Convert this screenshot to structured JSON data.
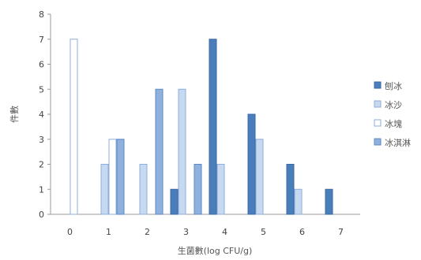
{
  "chart_data": {
    "type": "bar",
    "categories": [
      "0",
      "1",
      "2",
      "3",
      "4",
      "5",
      "6",
      "7"
    ],
    "series": [
      {
        "name": "刨冰",
        "values": [
          0,
          0,
          0,
          1,
          7,
          4,
          2,
          1
        ],
        "fill": "#4a7ebb",
        "stroke": "#3a6aa5"
      },
      {
        "name": "冰沙",
        "values": [
          0,
          2,
          2,
          5,
          2,
          3,
          1,
          0
        ],
        "fill": "#c6d9f1",
        "stroke": "#8eaedb"
      },
      {
        "name": "冰塊",
        "values": [
          7,
          3,
          0,
          0,
          0,
          0,
          0,
          0
        ],
        "fill": "#ffffff",
        "stroke": "#8eaedb"
      },
      {
        "name": "冰淇淋",
        "values": [
          0,
          3,
          5,
          2,
          0,
          0,
          0,
          0
        ],
        "fill": "#8eb1dd",
        "stroke": "#5d89c4"
      }
    ],
    "xlabel": "生菌數(log CFU/g)",
    "ylabel": "件數",
    "ylim": [
      0,
      8
    ],
    "yticks": [
      0,
      1,
      2,
      3,
      4,
      5,
      6,
      7,
      8
    ],
    "grid": false,
    "legend": "right"
  }
}
